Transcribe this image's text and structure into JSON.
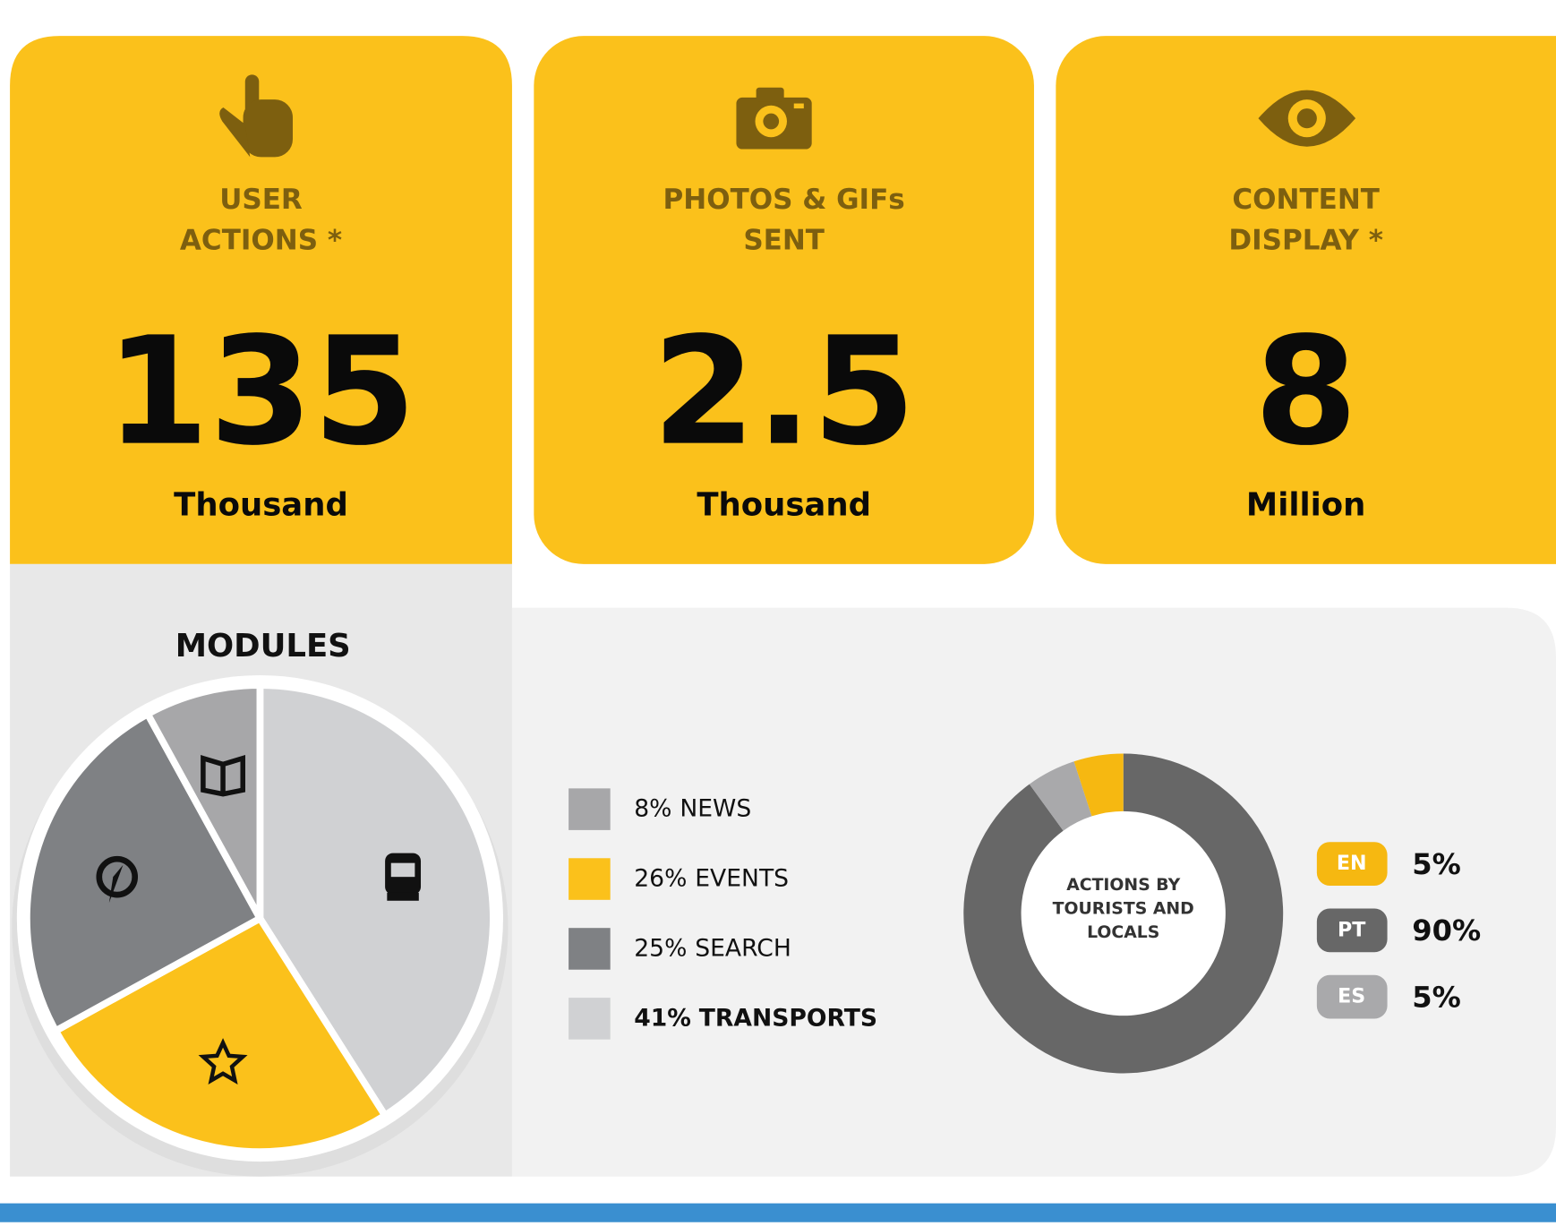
{
  "cards": [
    {
      "label": [
        "USER",
        "ACTIONS *"
      ],
      "value": 135,
      "unit": "Thousand"
    },
    {
      "label": [
        "PHOTOS & GIFs",
        "SENT"
      ],
      "value": 2.5,
      "unit": "Thousand"
    },
    {
      "label": [
        "CONTENT",
        "DISPLAY *"
      ],
      "value": 8,
      "unit": "Million"
    }
  ],
  "chart_data": [
    {
      "type": "pie",
      "title": "MODULES",
      "categories": [
        "NEWS",
        "EVENTS",
        "SEARCH",
        "TRANSPORTS"
      ],
      "values": [
        8,
        26,
        25,
        41
      ],
      "value_labels": [
        "8%",
        "26%",
        "25%",
        "41%"
      ],
      "colors": [
        "#a7a7a9",
        "#fbc11b",
        "#7f8184",
        "#d0d1d3"
      ]
    },
    {
      "type": "donut",
      "title": "ACTIONS BY TOURISTS AND LOCALS",
      "categories": [
        "EN",
        "PT",
        "ES"
      ],
      "values": [
        5,
        90,
        5
      ],
      "value_labels": [
        "5%",
        "90%",
        "5%"
      ],
      "colors": [
        "#f6b811",
        "#676767",
        "#a9a9ab"
      ]
    }
  ]
}
